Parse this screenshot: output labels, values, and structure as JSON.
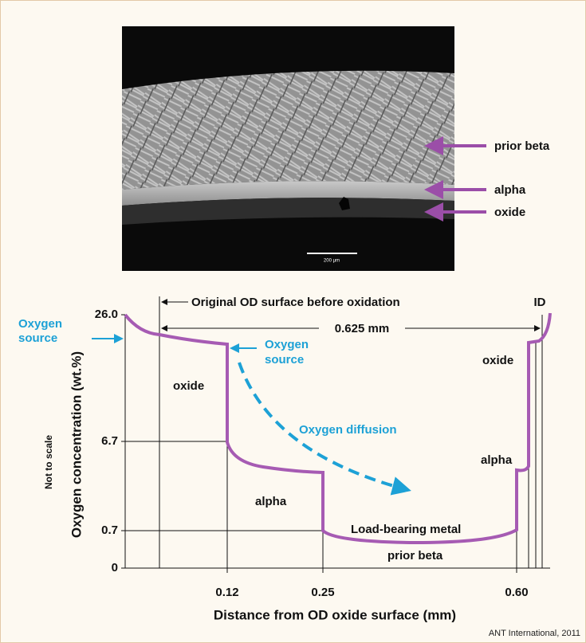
{
  "micrograph": {
    "scale_bar": "200 μm",
    "labels": [
      "prior beta",
      "alpha",
      "oxide"
    ]
  },
  "diagram": {
    "annotations": {
      "original_surface": "Original OD surface before oxidation",
      "thickness": "0.625 mm",
      "id": "ID",
      "oxygen_source_left": [
        "Oxygen",
        "source"
      ],
      "oxygen_source_inner": [
        "Oxygen",
        "source"
      ],
      "oxygen_diffusion": "Oxygen diffusion"
    },
    "regions": {
      "oxide_left": "oxide",
      "alpha_left": "alpha",
      "load_bearing": "Load-bearing metal",
      "prior_beta": "prior beta",
      "oxide_right": "oxide",
      "alpha_right": "alpha"
    },
    "y_axis": {
      "label": "Oxygen concentration (wt.%)",
      "note": "Not to scale",
      "ticks": [
        "26.0",
        "6.7",
        "0.7",
        "0"
      ]
    },
    "x_axis": {
      "label": "Distance from OD oxide surface (mm)",
      "ticks": [
        "0.12",
        "0.25",
        "0.60"
      ]
    }
  },
  "credit": "ANT International, 2011"
}
